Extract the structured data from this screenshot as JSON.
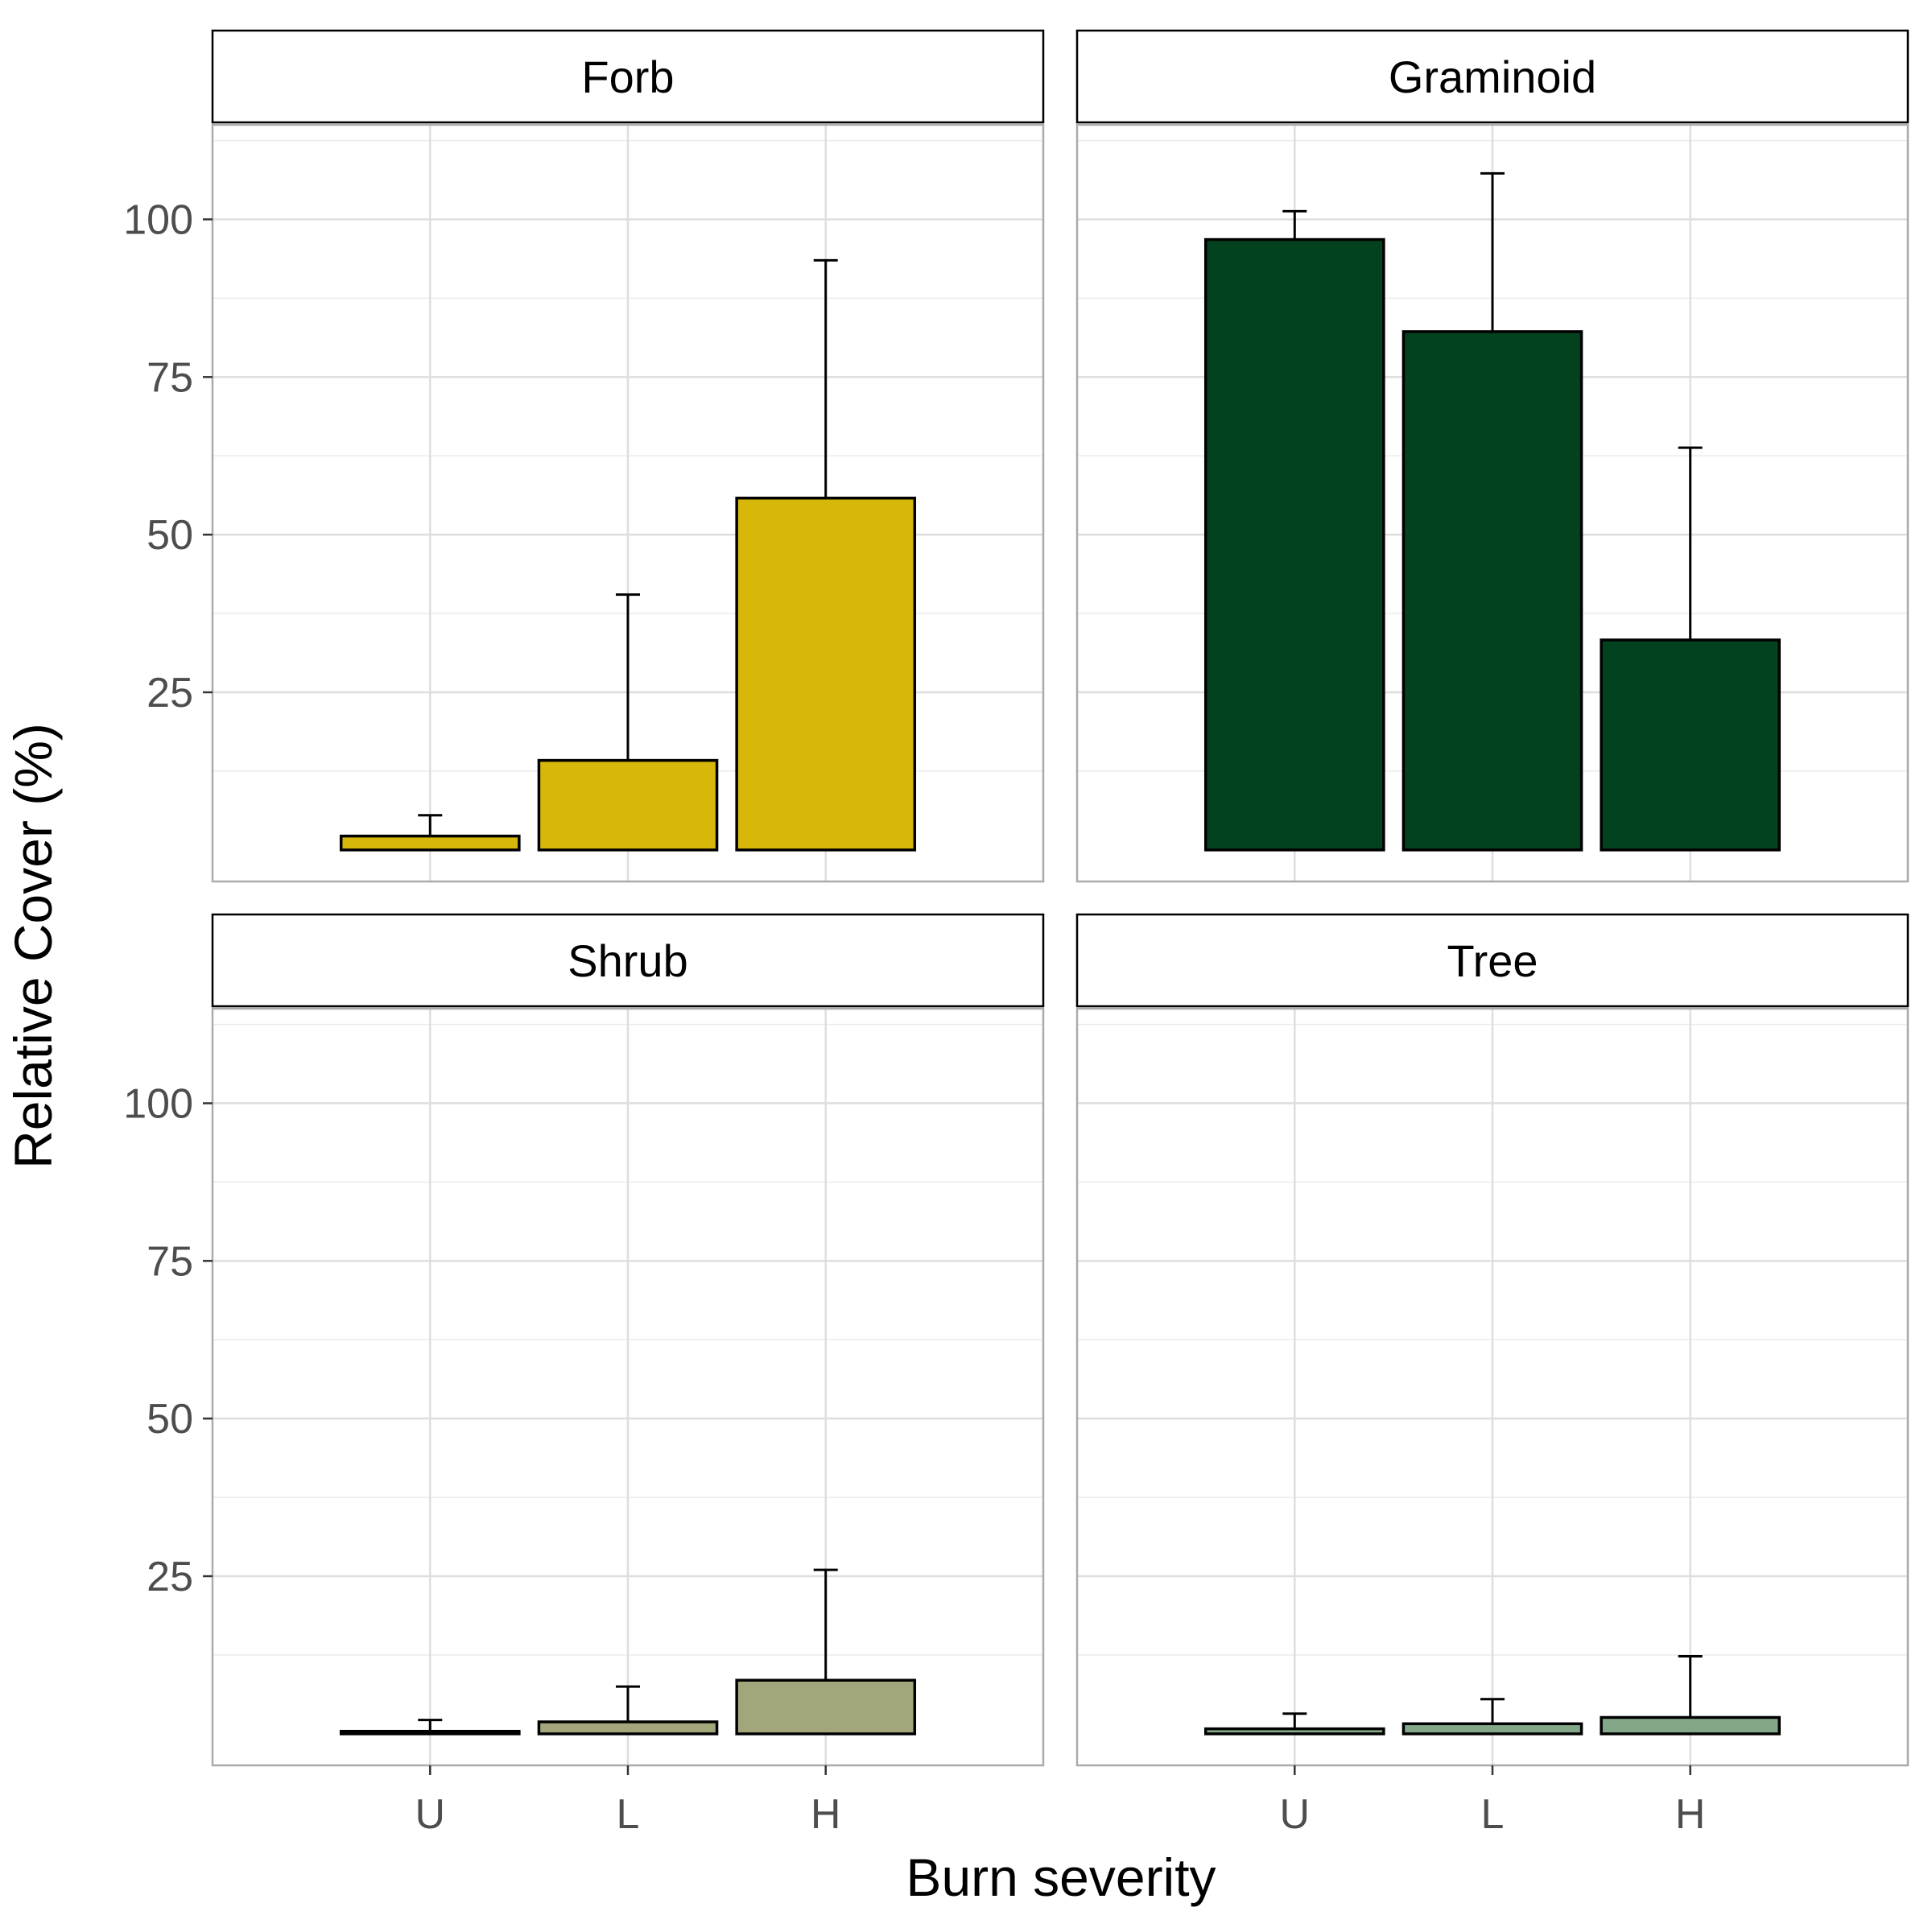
{
  "chart_data": {
    "type": "bar",
    "xlabel": "Burn severity",
    "ylabel": "Relative Cover (%)",
    "categories": [
      "U",
      "L",
      "H"
    ],
    "y_ticks": [
      25,
      50,
      75,
      100
    ],
    "ylim": [
      -5,
      115
    ],
    "grid": true,
    "error_bars": "upper",
    "panels": [
      {
        "name": "Forb",
        "color": "#D8B70B",
        "values": [
          2.2,
          14.2,
          55.8
        ],
        "error_upper": [
          5.5,
          40.5,
          93.5
        ]
      },
      {
        "name": "Graminoid",
        "color": "#03421F",
        "values": [
          96.8,
          82.2,
          33.3
        ],
        "error_upper": [
          101.3,
          107.3,
          63.8
        ]
      },
      {
        "name": "Shrub",
        "color": "#A3A57A",
        "values": [
          0.4,
          1.9,
          8.5
        ],
        "error_upper": [
          2.2,
          7.5,
          26.0
        ]
      },
      {
        "name": "Tree",
        "color": "#83A788",
        "values": [
          0.8,
          1.6,
          2.6
        ],
        "error_upper": [
          3.2,
          5.5,
          12.3
        ]
      }
    ]
  }
}
